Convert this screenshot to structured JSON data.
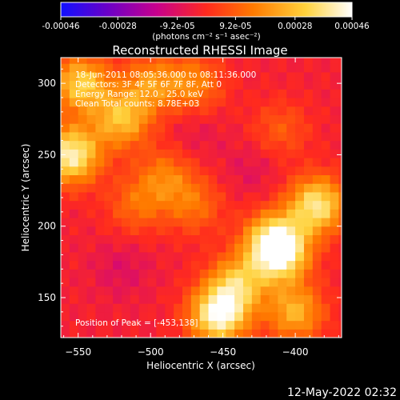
{
  "colorbar": {
    "ticks": [
      "-0.00046",
      "-0.00028",
      "-9.2e-05",
      "9.2e-05",
      "0.00028",
      "0.00046"
    ],
    "tick_values": [
      -0.00046,
      -0.00028,
      -9.2e-05,
      9.2e-05,
      0.00028,
      0.00046
    ],
    "range": [
      -0.00046,
      0.00046
    ],
    "units": "(photons cm⁻² s⁻¹ asec⁻²)",
    "colors": [
      "#1010ff",
      "#6a00c8",
      "#c8008c",
      "#ff2a1e",
      "#ff7a00",
      "#ffd23c",
      "#ffffff"
    ]
  },
  "chart_data": {
    "type": "heatmap",
    "title": "Reconstructed RHESSI Image",
    "xlabel": "Heliocentric X (arcsec)",
    "ylabel": "Heliocentric Y (arcsec)",
    "xlim": [
      -562,
      -368
    ],
    "ylim": [
      122,
      318
    ],
    "xticks": [
      -550,
      -500,
      -450,
      -400
    ],
    "yticks": [
      150,
      200,
      250,
      300
    ],
    "info_lines": [
      "18-Jun-2011 08:05:36.000 to 08:11:36.000",
      "Detectors: 3F 4F 5F 6F 7F 8F, Att 0",
      "Energy Range: 12.0 - 25.0 keV",
      "Clean     Total counts: 8.78E+03"
    ],
    "peak_label": "Position of Peak = [-453,138]",
    "peak": [
      -453,
      138
    ],
    "sources": [
      {
        "x": -555,
        "y": 250,
        "value": 0.00044
      },
      {
        "x": -548,
        "y": 300,
        "value": 0.00034
      },
      {
        "x": -520,
        "y": 275,
        "value": 0.0003
      },
      {
        "x": -500,
        "y": 300,
        "value": 0.00022
      },
      {
        "x": -470,
        "y": 300,
        "value": 0.0002
      },
      {
        "x": -410,
        "y": 268,
        "value": 0.00012
      },
      {
        "x": -490,
        "y": 235,
        "value": 0.00018
      },
      {
        "x": -470,
        "y": 215,
        "value": 0.00016
      },
      {
        "x": -510,
        "y": 215,
        "value": 0.00015
      },
      {
        "x": -385,
        "y": 215,
        "value": 0.0004
      },
      {
        "x": -410,
        "y": 180,
        "value": 0.00034
      },
      {
        "x": -415,
        "y": 190,
        "value": 0.00036
      },
      {
        "x": -440,
        "y": 160,
        "value": 0.0003
      },
      {
        "x": -453,
        "y": 138,
        "value": 0.00046
      },
      {
        "x": -400,
        "y": 140,
        "value": 0.00028
      },
      {
        "x": -520,
        "y": 170,
        "value": -6e-05
      },
      {
        "x": -470,
        "y": 265,
        "value": -4e-05
      },
      {
        "x": -430,
        "y": 240,
        "value": -5e-05
      }
    ]
  },
  "footer": {
    "timestamp": "12-May-2022 02:32"
  }
}
